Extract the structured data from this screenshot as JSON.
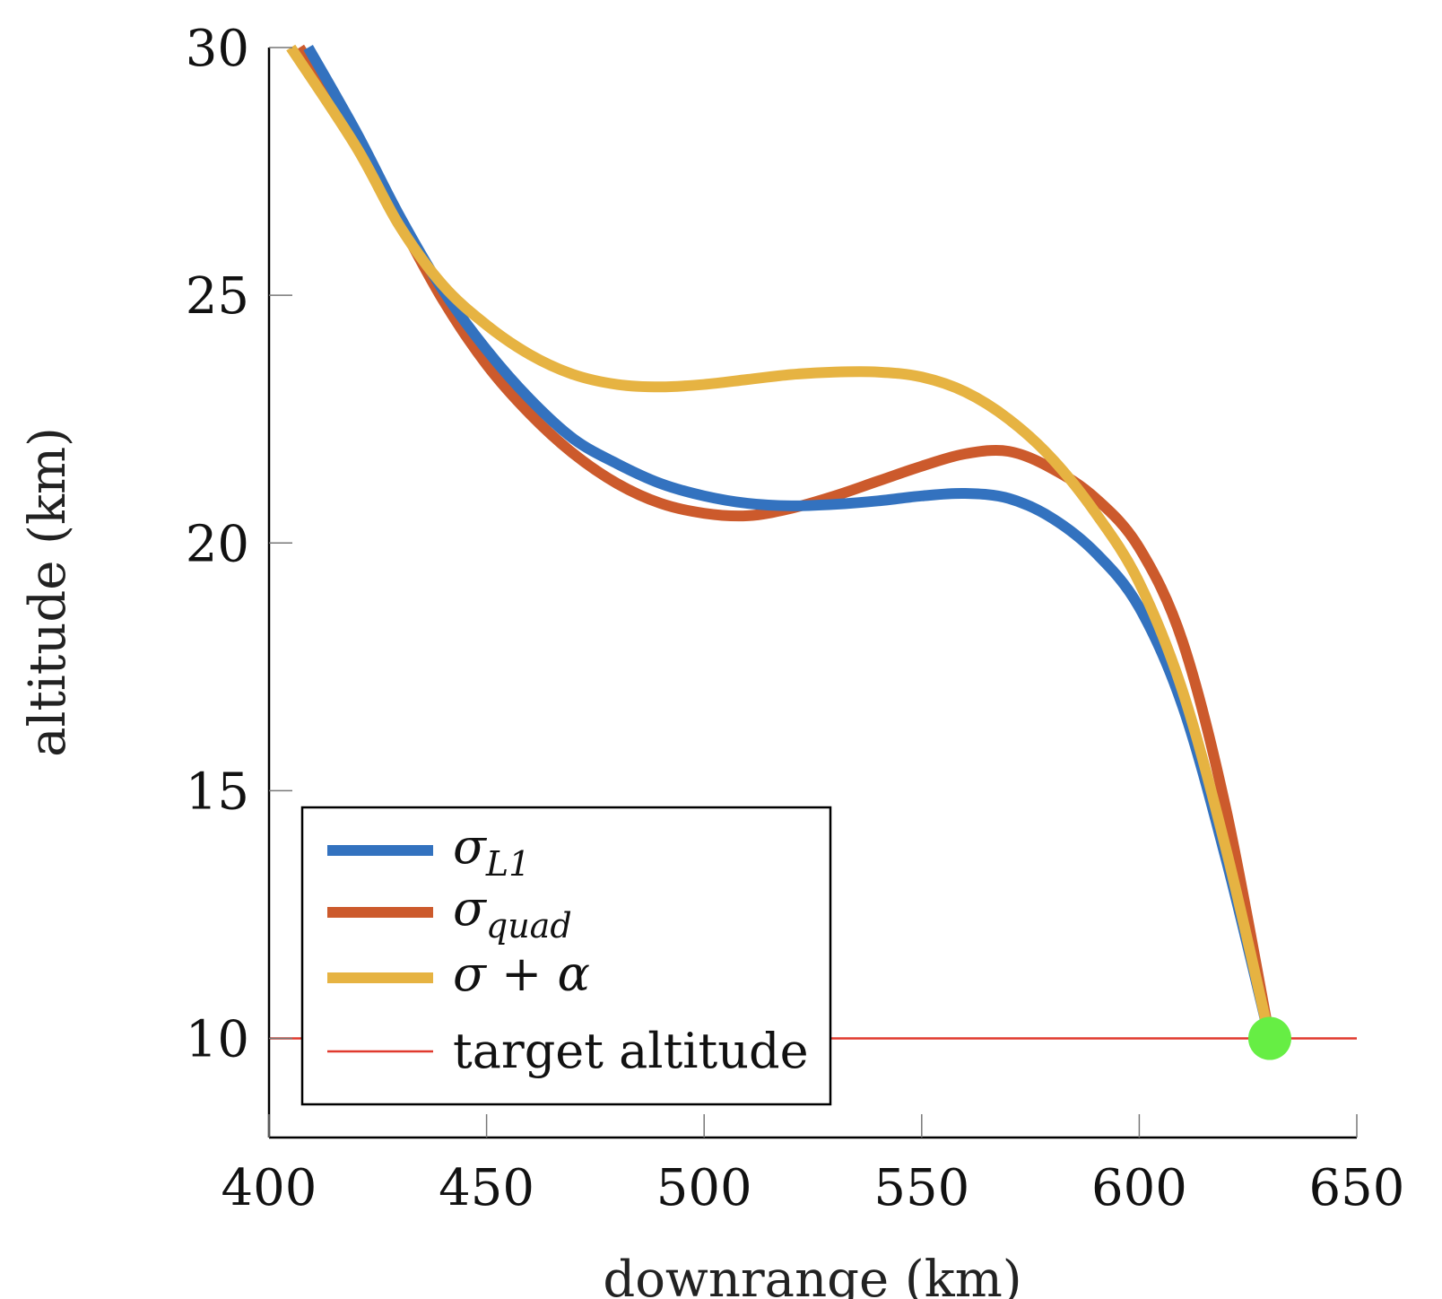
{
  "chart_data": {
    "type": "line",
    "xlabel": "downrange (km)",
    "ylabel": "altitude (km)",
    "xlim": [
      400,
      650
    ],
    "ylim": [
      8,
      30
    ],
    "xticks": [
      "400",
      "450",
      "500",
      "550",
      "600",
      "650"
    ],
    "yticks": [
      "10",
      "15",
      "20",
      "25",
      "30"
    ],
    "xtick_values": [
      400,
      450,
      500,
      550,
      600,
      650
    ],
    "ytick_values": [
      10,
      15,
      20,
      25,
      30
    ],
    "legend_position": "bottom-left",
    "series": [
      {
        "name": "σL1",
        "name_main": "σ",
        "name_sub": "L1",
        "color": "#3372bf",
        "x": [
          409,
          420,
          430,
          440,
          450,
          460,
          470,
          480,
          490,
          500,
          510,
          520,
          530,
          540,
          550,
          560,
          570,
          580,
          590,
          600,
          610,
          620,
          630
        ],
        "y": [
          30.0,
          28.3,
          26.6,
          25.1,
          23.9,
          22.9,
          22.1,
          21.6,
          21.2,
          20.95,
          20.8,
          20.75,
          20.78,
          20.85,
          20.95,
          21.0,
          20.9,
          20.5,
          19.8,
          18.7,
          16.7,
          13.6,
          10.0
        ]
      },
      {
        "name": "σquad",
        "name_main": "σ",
        "name_sub": "quad",
        "color": "#cc5a2c",
        "x": [
          407,
          420,
          430,
          440,
          450,
          460,
          470,
          480,
          490,
          500,
          510,
          520,
          530,
          540,
          550,
          560,
          570,
          580,
          590,
          600,
          610,
          620,
          630
        ],
        "y": [
          30.0,
          28.2,
          26.5,
          24.9,
          23.6,
          22.6,
          21.8,
          21.2,
          20.8,
          20.6,
          20.55,
          20.7,
          20.95,
          21.25,
          21.55,
          21.8,
          21.85,
          21.5,
          20.9,
          19.9,
          18.0,
          14.6,
          10.0
        ]
      },
      {
        "name": "σ + α",
        "name_main": "σ + α",
        "name_sub": "",
        "color": "#e6b342",
        "x": [
          405,
          420,
          430,
          440,
          450,
          460,
          470,
          480,
          490,
          500,
          510,
          520,
          530,
          540,
          550,
          560,
          570,
          580,
          590,
          600,
          610,
          620,
          630
        ],
        "y": [
          30.0,
          28.0,
          26.4,
          25.2,
          24.4,
          23.8,
          23.4,
          23.2,
          23.15,
          23.2,
          23.3,
          23.4,
          23.45,
          23.45,
          23.35,
          23.05,
          22.5,
          21.7,
          20.6,
          19.2,
          17.0,
          13.8,
          10.0
        ]
      },
      {
        "name": "target altitude",
        "name_main": "target altitude",
        "name_sub": "",
        "color": "#e03a2e",
        "x": [
          400,
          650
        ],
        "y": [
          10,
          10
        ]
      }
    ],
    "marker": {
      "x": 630,
      "y": 10,
      "color": "#66ee44"
    }
  }
}
